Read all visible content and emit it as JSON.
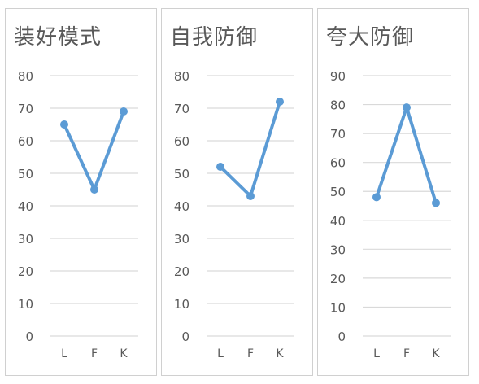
{
  "chart_data": [
    {
      "type": "line",
      "title": "装好模式",
      "categories": [
        "L",
        "F",
        "K"
      ],
      "series": [
        {
          "values": [
            65,
            45,
            69
          ]
        }
      ],
      "ylim": [
        0,
        80
      ],
      "yticks": [
        0,
        10,
        20,
        30,
        40,
        50,
        60,
        70,
        80
      ],
      "grid": true,
      "color": "#5b9bd5"
    },
    {
      "type": "line",
      "title": "自我防御",
      "categories": [
        "L",
        "F",
        "K"
      ],
      "series": [
        {
          "values": [
            52,
            43,
            72
          ]
        }
      ],
      "ylim": [
        0,
        80
      ],
      "yticks": [
        0,
        10,
        20,
        30,
        40,
        50,
        60,
        70,
        80
      ],
      "grid": true,
      "color": "#5b9bd5"
    },
    {
      "type": "line",
      "title": "夸大防御",
      "categories": [
        "L",
        "F",
        "K"
      ],
      "series": [
        {
          "values": [
            48,
            79,
            46
          ]
        }
      ],
      "ylim": [
        0,
        90
      ],
      "yticks": [
        0,
        10,
        20,
        30,
        40,
        50,
        60,
        70,
        80,
        90
      ],
      "grid": true,
      "color": "#5b9bd5"
    }
  ]
}
